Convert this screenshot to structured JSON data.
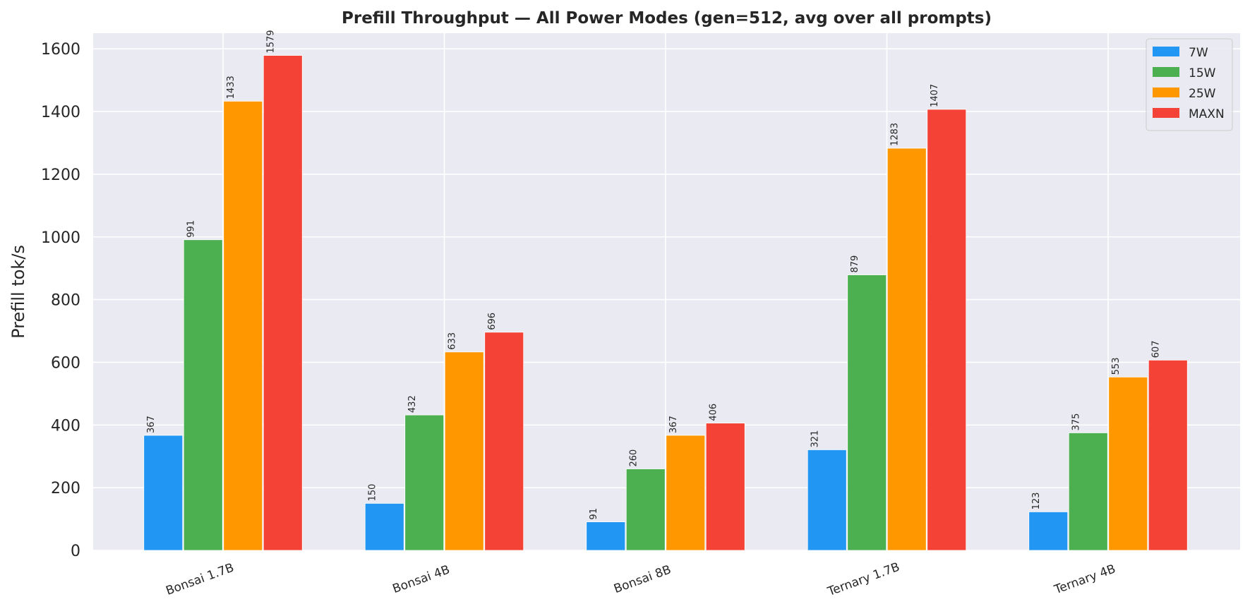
{
  "chart_data": {
    "type": "bar",
    "title": "Prefill Throughput — All Power Modes (gen=512, avg over all prompts)",
    "xlabel": "",
    "ylabel": "Prefill tok/s",
    "ylim": [
      0,
      1650
    ],
    "yticks": [
      0,
      200,
      400,
      600,
      800,
      1000,
      1200,
      1400,
      1600
    ],
    "grid": true,
    "legend_position": "top-right",
    "categories": [
      "Bonsai 1.7B",
      "Bonsai 4B",
      "Bonsai 8B",
      "Ternary 1.7B",
      "Ternary 4B"
    ],
    "series": [
      {
        "name": "7W",
        "color": "#2196F3",
        "values": [
          367,
          150,
          91,
          321,
          123
        ]
      },
      {
        "name": "15W",
        "color": "#4CAF50",
        "values": [
          991,
          432,
          260,
          879,
          375
        ]
      },
      {
        "name": "25W",
        "color": "#FF9800",
        "values": [
          1433,
          633,
          367,
          1283,
          553
        ]
      },
      {
        "name": "MAXN",
        "color": "#F44336",
        "values": [
          1579,
          696,
          406,
          1407,
          607
        ]
      }
    ]
  }
}
